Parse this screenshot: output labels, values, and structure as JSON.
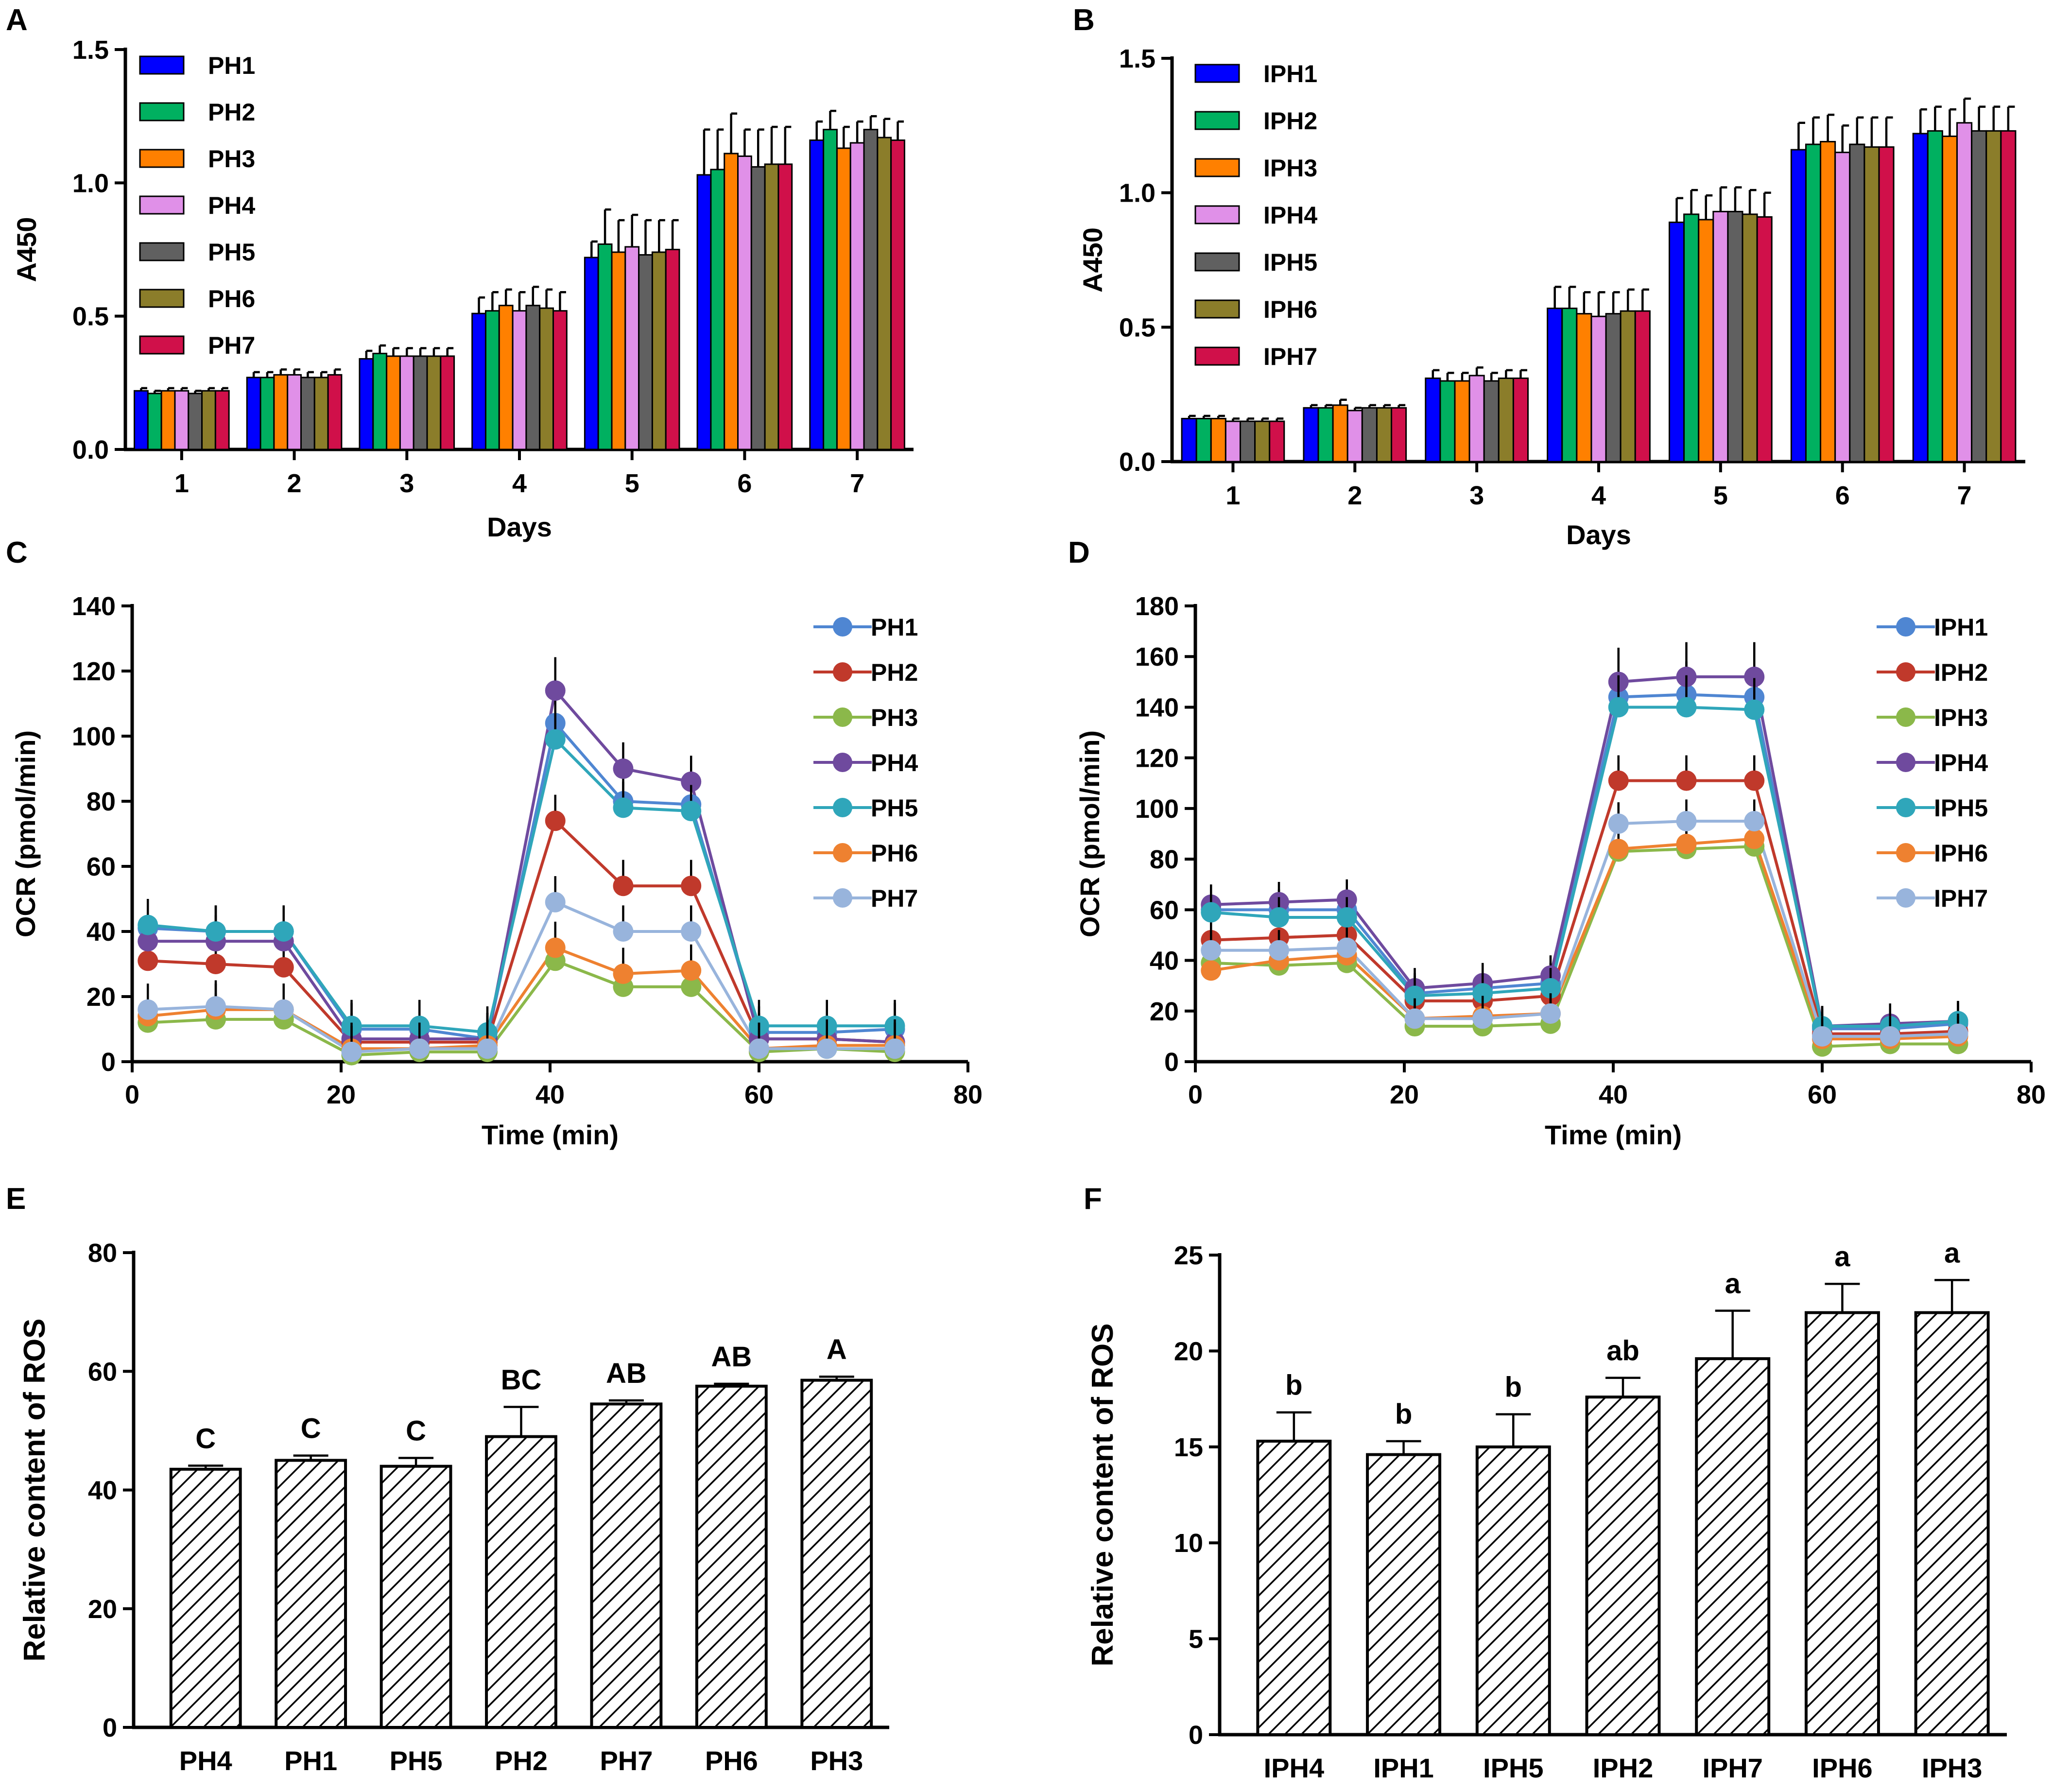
{
  "chart_data": [
    {
      "panel": "A",
      "type": "bar",
      "categories": [
        "1",
        "2",
        "3",
        "4",
        "5",
        "6",
        "7"
      ],
      "xlabel": "Days",
      "ylabel": "A450",
      "ylim": [
        0,
        1.5
      ],
      "yticks": [
        "0.0",
        "0.5",
        "1.0",
        "1.5"
      ],
      "legend_position": "top-left",
      "series": [
        {
          "name": "PH1",
          "color": "#0000ff",
          "values": [
            0.22,
            0.27,
            0.34,
            0.51,
            0.72,
            1.03,
            1.16
          ],
          "errors": [
            0.01,
            0.02,
            0.03,
            0.06,
            0.06,
            0.17,
            0.07
          ]
        },
        {
          "name": "PH2",
          "color": "#00b060",
          "values": [
            0.21,
            0.27,
            0.36,
            0.52,
            0.77,
            1.05,
            1.2
          ],
          "errors": [
            0.01,
            0.02,
            0.03,
            0.07,
            0.13,
            0.15,
            0.07
          ]
        },
        {
          "name": "PH3",
          "color": "#ff8000",
          "values": [
            0.22,
            0.28,
            0.35,
            0.54,
            0.74,
            1.11,
            1.13
          ],
          "errors": [
            0.01,
            0.02,
            0.03,
            0.06,
            0.12,
            0.15,
            0.08
          ]
        },
        {
          "name": "PH4",
          "color": "#e090e8",
          "values": [
            0.22,
            0.28,
            0.35,
            0.52,
            0.76,
            1.1,
            1.15
          ],
          "errors": [
            0.01,
            0.02,
            0.03,
            0.07,
            0.12,
            0.1,
            0.08
          ]
        },
        {
          "name": "PH5",
          "color": "#606060",
          "values": [
            0.21,
            0.27,
            0.35,
            0.54,
            0.73,
            1.06,
            1.2
          ],
          "errors": [
            0.01,
            0.02,
            0.03,
            0.07,
            0.13,
            0.14,
            0.05
          ]
        },
        {
          "name": "PH6",
          "color": "#8b7d2a",
          "values": [
            0.22,
            0.27,
            0.35,
            0.53,
            0.74,
            1.07,
            1.17
          ],
          "errors": [
            0.01,
            0.02,
            0.03,
            0.07,
            0.12,
            0.14,
            0.07
          ]
        },
        {
          "name": "PH7",
          "color": "#d0104a",
          "values": [
            0.22,
            0.28,
            0.35,
            0.52,
            0.75,
            1.07,
            1.16
          ],
          "errors": [
            0.01,
            0.02,
            0.03,
            0.07,
            0.11,
            0.14,
            0.07
          ]
        }
      ]
    },
    {
      "panel": "B",
      "type": "bar",
      "categories": [
        "1",
        "2",
        "3",
        "4",
        "5",
        "6",
        "7"
      ],
      "xlabel": "Days",
      "ylabel": "A450",
      "ylim": [
        0,
        1.5
      ],
      "yticks": [
        "0.0",
        "0.5",
        "1.0",
        "1.5"
      ],
      "legend_position": "top-left",
      "series": [
        {
          "name": "IPH1",
          "color": "#0000ff",
          "values": [
            0.16,
            0.2,
            0.31,
            0.57,
            0.89,
            1.16,
            1.22
          ],
          "errors": [
            0.01,
            0.01,
            0.03,
            0.08,
            0.09,
            0.1,
            0.09
          ]
        },
        {
          "name": "IPH2",
          "color": "#00b060",
          "values": [
            0.16,
            0.2,
            0.3,
            0.57,
            0.92,
            1.18,
            1.23
          ],
          "errors": [
            0.01,
            0.01,
            0.03,
            0.08,
            0.09,
            0.1,
            0.09
          ]
        },
        {
          "name": "IPH3",
          "color": "#ff8000",
          "values": [
            0.16,
            0.21,
            0.3,
            0.55,
            0.9,
            1.19,
            1.21
          ],
          "errors": [
            0.01,
            0.02,
            0.03,
            0.08,
            0.09,
            0.1,
            0.1
          ]
        },
        {
          "name": "IPH4",
          "color": "#e090e8",
          "values": [
            0.15,
            0.19,
            0.32,
            0.54,
            0.93,
            1.15,
            1.26
          ],
          "errors": [
            0.01,
            0.01,
            0.03,
            0.09,
            0.09,
            0.1,
            0.09
          ]
        },
        {
          "name": "IPH5",
          "color": "#606060",
          "values": [
            0.15,
            0.2,
            0.3,
            0.55,
            0.93,
            1.18,
            1.23
          ],
          "errors": [
            0.01,
            0.01,
            0.03,
            0.08,
            0.09,
            0.1,
            0.09
          ]
        },
        {
          "name": "IPH6",
          "color": "#8b7d2a",
          "values": [
            0.15,
            0.2,
            0.31,
            0.56,
            0.92,
            1.17,
            1.23
          ],
          "errors": [
            0.01,
            0.01,
            0.03,
            0.08,
            0.09,
            0.11,
            0.09
          ]
        },
        {
          "name": "IPH7",
          "color": "#d0104a",
          "values": [
            0.15,
            0.2,
            0.31,
            0.56,
            0.91,
            1.17,
            1.23
          ],
          "errors": [
            0.01,
            0.01,
            0.03,
            0.08,
            0.09,
            0.11,
            0.09
          ]
        }
      ]
    },
    {
      "panel": "C",
      "type": "line",
      "xlabel": "Time (min)",
      "ylabel": "OCR (pmol/min)",
      "xlim": [
        0,
        80
      ],
      "ylim": [
        0,
        140
      ],
      "xticks": [
        "0",
        "20",
        "40",
        "60",
        "80"
      ],
      "yticks": [
        "0",
        "20",
        "40",
        "60",
        "80",
        "100",
        "120",
        "140"
      ],
      "legend_position": "top-right",
      "x": [
        1.5,
        8,
        14.5,
        21,
        27.5,
        34,
        40.5,
        47,
        53.5,
        60,
        66.5,
        73
      ],
      "series": [
        {
          "name": "PH1",
          "color": "#4f86d2",
          "values": [
            41,
            40,
            40,
            10,
            10,
            7,
            104,
            80,
            79,
            9,
            9,
            10
          ]
        },
        {
          "name": "PH2",
          "color": "#c0392b",
          "values": [
            31,
            30,
            29,
            6,
            6,
            6,
            74,
            54,
            54,
            7,
            7,
            6
          ]
        },
        {
          "name": "PH3",
          "color": "#8bb84a",
          "values": [
            12,
            13,
            13,
            2,
            3,
            3,
            31,
            23,
            23,
            3,
            4,
            3
          ]
        },
        {
          "name": "PH4",
          "color": "#6f4a9e",
          "values": [
            37,
            37,
            37,
            7,
            7,
            7,
            114,
            90,
            86,
            7,
            7,
            6
          ]
        },
        {
          "name": "PH5",
          "color": "#2fa6ba",
          "values": [
            42,
            40,
            40,
            11,
            11,
            9,
            99,
            78,
            77,
            11,
            11,
            11
          ]
        },
        {
          "name": "PH6",
          "color": "#ee8130",
          "values": [
            14,
            16,
            16,
            4,
            4,
            5,
            35,
            27,
            28,
            4,
            5,
            5
          ]
        },
        {
          "name": "PH7",
          "color": "#98b4dc",
          "values": [
            16,
            17,
            16,
            3,
            4,
            4,
            49,
            40,
            40,
            4,
            4,
            4
          ]
        }
      ]
    },
    {
      "panel": "D",
      "type": "line",
      "xlabel": "Time (min)",
      "ylabel": "OCR (pmol/min)",
      "xlim": [
        0,
        80
      ],
      "ylim": [
        0,
        180
      ],
      "xticks": [
        "0",
        "20",
        "40",
        "60",
        "80"
      ],
      "yticks": [
        "0",
        "20",
        "40",
        "60",
        "80",
        "100",
        "120",
        "140",
        "160",
        "180"
      ],
      "legend_position": "top-right",
      "x": [
        1.5,
        8,
        14.5,
        21,
        27.5,
        34,
        40.5,
        47,
        53.5,
        60,
        66.5,
        73
      ],
      "series": [
        {
          "name": "IPH1",
          "color": "#4f86d2",
          "values": [
            60,
            60,
            60,
            27,
            29,
            31,
            144,
            145,
            144,
            13,
            13,
            15
          ]
        },
        {
          "name": "IPH2",
          "color": "#c0392b",
          "values": [
            48,
            49,
            50,
            24,
            24,
            26,
            111,
            111,
            111,
            11,
            11,
            12
          ]
        },
        {
          "name": "IPH3",
          "color": "#8bb84a",
          "values": [
            39,
            38,
            39,
            14,
            14,
            15,
            83,
            84,
            85,
            6,
            7,
            7
          ]
        },
        {
          "name": "IPH4",
          "color": "#6f4a9e",
          "values": [
            62,
            63,
            64,
            29,
            31,
            34,
            150,
            152,
            152,
            14,
            15,
            16
          ]
        },
        {
          "name": "IPH5",
          "color": "#2fa6ba",
          "values": [
            59,
            57,
            57,
            26,
            27,
            29,
            140,
            140,
            139,
            14,
            14,
            16
          ]
        },
        {
          "name": "IPH6",
          "color": "#ee8130",
          "values": [
            36,
            40,
            42,
            17,
            18,
            19,
            84,
            86,
            88,
            9,
            9,
            10
          ]
        },
        {
          "name": "IPH7",
          "color": "#98b4dc",
          "values": [
            44,
            44,
            45,
            17,
            17,
            19,
            94,
            95,
            95,
            10,
            10,
            11
          ]
        }
      ]
    },
    {
      "panel": "E",
      "type": "bar",
      "categories": [
        "PH4",
        "PH1",
        "PH5",
        "PH2",
        "PH7",
        "PH6",
        "PH3"
      ],
      "values": [
        43.5,
        45,
        44,
        49,
        54.5,
        57.5,
        58.5
      ],
      "errors": [
        0.6,
        0.8,
        1.4,
        5,
        0.6,
        0.4,
        0.6
      ],
      "labels": [
        "C",
        "C",
        "C",
        "BC",
        "AB",
        "AB",
        "A"
      ],
      "xlabel": "",
      "ylabel": "Relative content of ROS",
      "ylim": [
        0,
        80
      ],
      "yticks": [
        "0",
        "20",
        "40",
        "60",
        "80"
      ],
      "fill": "diagonal hatch"
    },
    {
      "panel": "F",
      "type": "bar",
      "categories": [
        "IPH4",
        "IPH1",
        "IPH5",
        "IPH2",
        "IPH7",
        "IPH6",
        "IPH3"
      ],
      "values": [
        15.3,
        14.6,
        15,
        17.6,
        19.6,
        22,
        22
      ],
      "errors": [
        1.5,
        0.7,
        1.7,
        1,
        2.5,
        1.5,
        1.7
      ],
      "labels": [
        "b",
        "b",
        "b",
        "ab",
        "a",
        "a",
        "a"
      ],
      "xlabel": "",
      "ylabel": "Relative content of ROS",
      "ylim": [
        0,
        25
      ],
      "yticks": [
        "0",
        "5",
        "10",
        "15",
        "20",
        "25"
      ],
      "fill": "diagonal hatch"
    }
  ]
}
